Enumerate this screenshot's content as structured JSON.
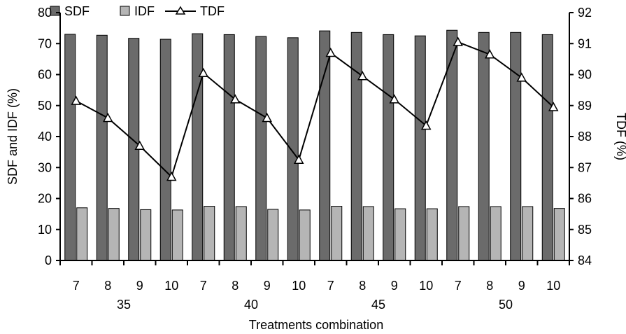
{
  "chart_data": {
    "type": "bar",
    "groups": [
      "35",
      "40",
      "45",
      "50"
    ],
    "categories": [
      "7",
      "8",
      "9",
      "10",
      "7",
      "8",
      "9",
      "10",
      "7",
      "8",
      "9",
      "10",
      "7",
      "8",
      "9",
      "10"
    ],
    "series": [
      {
        "name": "SDF",
        "type": "bar",
        "axis": "left",
        "color": "#6b6b6b",
        "values": [
          73.0,
          72.7,
          71.7,
          71.4,
          73.2,
          72.9,
          72.3,
          71.9,
          74.1,
          73.6,
          72.9,
          72.5,
          74.3,
          73.6,
          73.6,
          72.9
        ]
      },
      {
        "name": "IDF",
        "type": "bar",
        "axis": "left",
        "color": "#b5b5b5",
        "values": [
          17.0,
          16.8,
          16.4,
          16.3,
          17.5,
          17.4,
          16.5,
          16.3,
          17.5,
          17.4,
          16.7,
          16.7,
          17.4,
          17.4,
          17.4,
          16.8
        ]
      },
      {
        "name": "TDF",
        "type": "line",
        "axis": "right",
        "color": "#000000",
        "marker": "open-triangle",
        "values": [
          89.15,
          88.6,
          87.7,
          86.7,
          90.05,
          89.2,
          88.6,
          87.25,
          90.7,
          89.95,
          89.2,
          88.35,
          91.05,
          90.65,
          89.9,
          88.95
        ]
      }
    ],
    "xlabel": "Treatments combination",
    "ylabel": "SDF and IDF (%)",
    "y2label": "TDF (%)",
    "ylim": [
      0,
      80
    ],
    "y2lim": [
      84,
      92
    ],
    "yticks": [
      "0",
      "10",
      "20",
      "30",
      "40",
      "50",
      "60",
      "70",
      "80"
    ],
    "y2ticks": [
      "84",
      "85",
      "86",
      "87",
      "88",
      "89",
      "90",
      "91",
      "92"
    ],
    "legend": [
      "SDF",
      "IDF",
      "TDF"
    ],
    "legend_position": "top",
    "grid": false
  }
}
